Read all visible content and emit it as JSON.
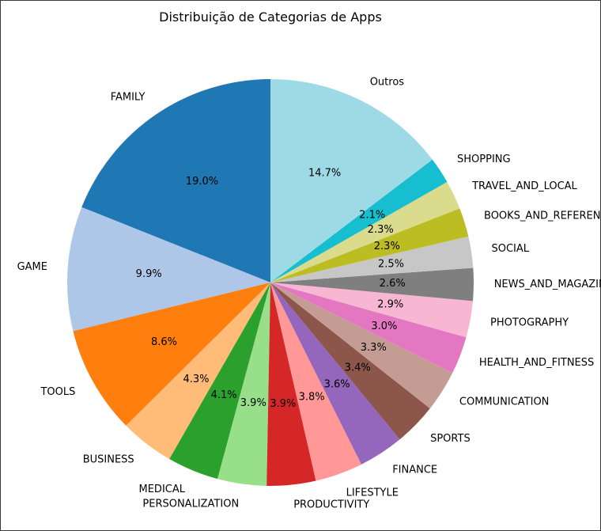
{
  "chart_data": {
    "type": "pie",
    "title": "Distribuição de Categorias de Apps",
    "start_angle_deg": 90,
    "direction": "counterclockwise",
    "slices": [
      {
        "label": "FAMILY",
        "value": 19.0,
        "pct_text": "19.0%",
        "color": "#1f77b4"
      },
      {
        "label": "GAME",
        "value": 9.9,
        "pct_text": "9.9%",
        "color": "#aec7e8"
      },
      {
        "label": "TOOLS",
        "value": 8.6,
        "pct_text": "8.6%",
        "color": "#ff7f0e"
      },
      {
        "label": "BUSINESS",
        "value": 4.3,
        "pct_text": "4.3%",
        "color": "#ffbb78"
      },
      {
        "label": "MEDICAL",
        "value": 4.1,
        "pct_text": "4.1%",
        "color": "#2ca02c"
      },
      {
        "label": "PERSONALIZATION",
        "value": 3.9,
        "pct_text": "3.9%",
        "color": "#98df8a"
      },
      {
        "label": "PRODUCTIVITY",
        "value": 3.9,
        "pct_text": "3.9%",
        "color": "#d62728"
      },
      {
        "label": "LIFESTYLE",
        "value": 3.8,
        "pct_text": "3.8%",
        "color": "#ff9896"
      },
      {
        "label": "FINANCE",
        "value": 3.6,
        "pct_text": "3.6%",
        "color": "#9467bd"
      },
      {
        "label": "SPORTS",
        "value": 3.4,
        "pct_text": "3.4%",
        "color": "#8c564b"
      },
      {
        "label": "COMMUNICATION",
        "value": 3.3,
        "pct_text": "3.3%",
        "color": "#c49c94"
      },
      {
        "label": "HEALTH_AND_FITNESS",
        "value": 3.0,
        "pct_text": "3.0%",
        "color": "#e377c2"
      },
      {
        "label": "PHOTOGRAPHY",
        "value": 2.9,
        "pct_text": "2.9%",
        "color": "#f7b6d2"
      },
      {
        "label": "NEWS_AND_MAGAZINES",
        "value": 2.6,
        "pct_text": "2.6%",
        "color": "#7f7f7f"
      },
      {
        "label": "SOCIAL",
        "value": 2.5,
        "pct_text": "2.5%",
        "color": "#c7c7c7"
      },
      {
        "label": "BOOKS_AND_REFERENCE",
        "value": 2.3,
        "pct_text": "2.3%",
        "color": "#bcbd22"
      },
      {
        "label": "TRAVEL_AND_LOCAL",
        "value": 2.3,
        "pct_text": "2.3%",
        "color": "#dbdb8d"
      },
      {
        "label": "SHOPPING",
        "value": 2.1,
        "pct_text": "2.1%",
        "color": "#17becf"
      },
      {
        "label": "Outros",
        "value": 14.7,
        "pct_text": "14.7%",
        "color": "#9edae5"
      }
    ]
  }
}
